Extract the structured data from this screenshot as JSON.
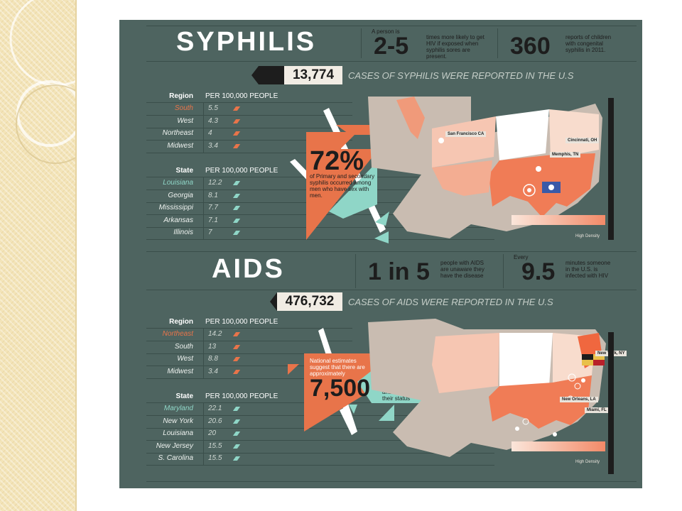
{
  "syphilis": {
    "title": "SYPHILIS",
    "stat1": {
      "value": "2-5",
      "pre": "A person is",
      "text": "times more likely to get HIV if exposed when syphilis sores are present."
    },
    "stat2": {
      "value": "360",
      "text": "reports of children with congenital syphilis in 2011."
    },
    "cases": {
      "value": "13,774",
      "text": "CASES OF SYPHILIS WERE REPORTED IN THE U.S"
    },
    "region_table": {
      "header_label": "Region",
      "header_unit": "PER 100,000 PEOPLE",
      "rows": [
        {
          "label": "South",
          "value": "5.5",
          "highlight": true
        },
        {
          "label": "West",
          "value": "4.3",
          "highlight": false
        },
        {
          "label": "Northeast",
          "value": "4",
          "highlight": false
        },
        {
          "label": "Midwest",
          "value": "3.4",
          "highlight": false
        }
      ]
    },
    "state_table": {
      "header_label": "State",
      "header_unit": "PER 100,000 PEOPLE",
      "rows": [
        {
          "label": "Louisiana",
          "value": "12.2",
          "highlight": true
        },
        {
          "label": "Georgia",
          "value": "8.1",
          "highlight": false
        },
        {
          "label": "Mississippi",
          "value": "7.7",
          "highlight": false
        },
        {
          "label": "Arkansas",
          "value": "7.1",
          "highlight": false
        },
        {
          "label": "Illinois",
          "value": "7",
          "highlight": false
        }
      ]
    },
    "callout": {
      "value": "72%",
      "text": "of Primary and secondary syphilis occurred among men who have sex with men."
    },
    "map_labels": [
      "San Francisco CA",
      "Cincinnati, OH",
      "Memphis, TN"
    ],
    "legend": "High Density"
  },
  "aids": {
    "title": "AIDS",
    "stat1": {
      "value": "1 in 5",
      "text": "people with AIDS are unaware they have the disease"
    },
    "stat2": {
      "value": "9.5",
      "pre": "Every",
      "text": "minutes someone in the U.S. is infected with HIV"
    },
    "cases": {
      "value": "476,732",
      "text": "CASES OF AIDS WERE REPORTED IN THE U.S"
    },
    "region_table": {
      "header_label": "Region",
      "header_unit": "PER 100,000 PEOPLE",
      "rows": [
        {
          "label": "Northeast",
          "value": "14.2",
          "highlight": true
        },
        {
          "label": "South",
          "value": "13",
          "highlight": false
        },
        {
          "label": "West",
          "value": "8.8",
          "highlight": false
        },
        {
          "label": "Midwest",
          "value": "3.4",
          "highlight": false
        }
      ]
    },
    "state_table": {
      "header_label": "State",
      "header_unit": "PER 100,000 PEOPLE",
      "rows": [
        {
          "label": "Maryland",
          "value": "22.1",
          "highlight": true
        },
        {
          "label": "New York",
          "value": "20.6",
          "highlight": false
        },
        {
          "label": "Louisiana",
          "value": "20",
          "highlight": false
        },
        {
          "label": "New Jersey",
          "value": "15.5",
          "highlight": false
        },
        {
          "label": "S. Carolina",
          "value": "15.5",
          "highlight": false
        }
      ]
    },
    "callout": {
      "pre": "National estimates suggest that there are approximately",
      "value": "7,500",
      "text": "Marylanders who are HIV positive and are unaware of their status"
    },
    "map_labels": [
      "New York, NY",
      "New Orleans, LA",
      "Miami, FL"
    ],
    "legend": "High Density"
  },
  "colors": {
    "background": "#4e6460",
    "orange": "#e8744a",
    "teal": "#8fd6c7",
    "cream": "#f1ece4"
  }
}
